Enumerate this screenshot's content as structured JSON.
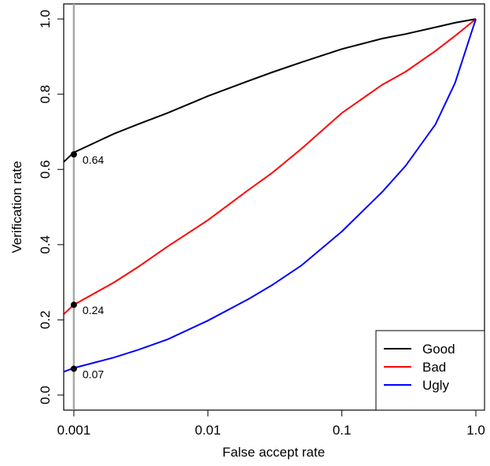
{
  "chart_data": {
    "type": "line",
    "title": "",
    "xlabel": "False accept rate",
    "ylabel": "Verification rate",
    "x_scale": "log",
    "xlim": [
      0.00084,
      1.16
    ],
    "ylim": [
      -0.04,
      1.04
    ],
    "x_ticks": [
      0.001,
      0.01,
      0.1,
      1.0
    ],
    "x_tick_labels": [
      "0.001",
      "0.01",
      "0.1",
      "1.0"
    ],
    "y_ticks": [
      0.0,
      0.2,
      0.4,
      0.6,
      0.8,
      1.0
    ],
    "y_tick_labels": [
      "0.0",
      "0.2",
      "0.4",
      "0.6",
      "0.8",
      "1.0"
    ],
    "grid": false,
    "legend_position": "bottom-right",
    "reference_line_x": 0.001,
    "series": [
      {
        "name": "Good",
        "color": "#000000",
        "x": [
          0.00084,
          0.001,
          0.002,
          0.003,
          0.005,
          0.01,
          0.02,
          0.03,
          0.05,
          0.1,
          0.2,
          0.3,
          0.5,
          0.7,
          1.0
        ],
        "y": [
          0.62,
          0.645,
          0.695,
          0.72,
          0.75,
          0.795,
          0.835,
          0.858,
          0.885,
          0.92,
          0.948,
          0.96,
          0.978,
          0.99,
          1.0
        ]
      },
      {
        "name": "Bad",
        "color": "#ff0000",
        "x": [
          0.00084,
          0.001,
          0.002,
          0.003,
          0.005,
          0.01,
          0.02,
          0.03,
          0.05,
          0.1,
          0.2,
          0.3,
          0.5,
          0.7,
          1.0
        ],
        "y": [
          0.215,
          0.24,
          0.3,
          0.34,
          0.395,
          0.465,
          0.545,
          0.59,
          0.655,
          0.75,
          0.825,
          0.86,
          0.915,
          0.955,
          1.0
        ]
      },
      {
        "name": "Ugly",
        "color": "#0000ff",
        "x": [
          0.00084,
          0.001,
          0.002,
          0.003,
          0.005,
          0.01,
          0.02,
          0.03,
          0.05,
          0.1,
          0.2,
          0.3,
          0.5,
          0.7,
          1.0
        ],
        "y": [
          0.062,
          0.072,
          0.1,
          0.12,
          0.148,
          0.198,
          0.255,
          0.292,
          0.345,
          0.435,
          0.54,
          0.61,
          0.72,
          0.83,
          1.0
        ]
      }
    ],
    "annotations": [
      {
        "x": 0.001,
        "y": 0.64,
        "label": "0.64"
      },
      {
        "x": 0.001,
        "y": 0.24,
        "label": "0.24"
      },
      {
        "x": 0.001,
        "y": 0.07,
        "label": "0.07"
      }
    ]
  }
}
